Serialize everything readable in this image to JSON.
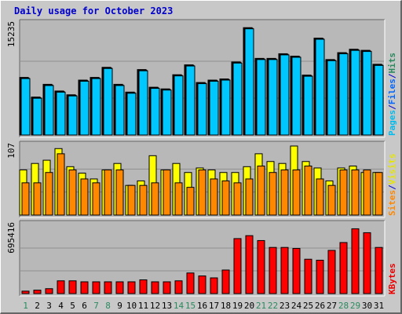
{
  "title": "Daily usage for October 2023",
  "colors": {
    "frame": "#c8c8c8",
    "panel": "#b8b8b8",
    "grid": "#8f8f8f",
    "pages": "#00c8ff",
    "pages_label": "#00bcee",
    "files": "#0066ff",
    "hits": "#2b8a5e",
    "visits": "#ffff00",
    "visits_label": "#e6e600",
    "sites": "#ff8800",
    "sites_label": "#ff8800",
    "kbytes": "#ff0000",
    "kbytes_label": "#ee0000",
    "day_weekday": "#000000",
    "day_weekend": "#2b8a5e",
    "separator": "#0000cc"
  },
  "chart_data": [
    {
      "type": "bar",
      "categories": [
        "1",
        "2",
        "3",
        "4",
        "5",
        "6",
        "7",
        "8",
        "9",
        "10",
        "11",
        "12",
        "13",
        "14",
        "15",
        "16",
        "17",
        "18",
        "19",
        "20",
        "21",
        "22",
        "23",
        "24",
        "25",
        "26",
        "27",
        "28",
        "29",
        "30",
        "31"
      ],
      "weekend_days": [
        "1",
        "7",
        "8",
        "14",
        "15",
        "21",
        "22",
        "28",
        "29"
      ],
      "axis_max_label": "15235",
      "ylim": [
        0,
        15235
      ],
      "legend": [
        "Pages",
        "/",
        "Files",
        "/",
        "Hits"
      ],
      "series": [
        {
          "name": "Hits",
          "values": [
            7930,
            5230,
            6980,
            6060,
            5540,
            7560,
            7930,
            9320,
            6980,
            5910,
            9010,
            6580,
            6350,
            8300,
            9660,
            7230,
            7560,
            7720,
            10060,
            14780,
            10550,
            10550,
            11190,
            10860,
            8250,
            13340,
            10390,
            11340,
            11810,
            11660,
            9740
          ]
        },
        {
          "name": "Files",
          "values": [
            7850,
            5140,
            6890,
            5980,
            5460,
            7480,
            7850,
            9240,
            6890,
            5830,
            8920,
            6500,
            6270,
            8220,
            9580,
            7150,
            7480,
            7640,
            9980,
            14700,
            10470,
            10470,
            11110,
            10780,
            8170,
            13260,
            10310,
            11260,
            11730,
            11580,
            9660
          ]
        },
        {
          "name": "Pages",
          "values": [
            7770,
            5060,
            6810,
            5900,
            5380,
            7400,
            7770,
            9160,
            6810,
            5750,
            8840,
            6420,
            6190,
            8140,
            9500,
            7070,
            7400,
            7560,
            9900,
            14620,
            10390,
            10390,
            11030,
            10700,
            8090,
            13180,
            10230,
            11180,
            11650,
            11500,
            9580
          ]
        }
      ]
    },
    {
      "type": "bar",
      "categories": [
        "1",
        "2",
        "3",
        "4",
        "5",
        "6",
        "7",
        "8",
        "9",
        "10",
        "11",
        "12",
        "13",
        "14",
        "15",
        "16",
        "17",
        "18",
        "19",
        "20",
        "21",
        "22",
        "23",
        "24",
        "25",
        "26",
        "27",
        "28",
        "29",
        "30",
        "31"
      ],
      "axis_max_label": "107",
      "ylim": [
        0,
        107
      ],
      "legend": [
        "Sites",
        "/",
        "Visits"
      ],
      "series": [
        {
          "name": "Visits",
          "values": [
            70,
            80,
            85,
            103,
            75,
            65,
            56,
            70,
            80,
            46,
            53,
            92,
            70,
            80,
            66,
            73,
            70,
            66,
            66,
            75,
            95,
            83,
            80,
            107,
            83,
            73,
            53,
            73,
            76,
            66,
            66
          ]
        },
        {
          "name": "Sites",
          "values": [
            50,
            50,
            66,
            95,
            70,
            56,
            50,
            70,
            70,
            46,
            46,
            50,
            70,
            50,
            43,
            70,
            56,
            53,
            50,
            56,
            76,
            66,
            70,
            70,
            76,
            56,
            46,
            70,
            70,
            70,
            66
          ]
        }
      ]
    },
    {
      "type": "bar",
      "categories": [
        "1",
        "2",
        "3",
        "4",
        "5",
        "6",
        "7",
        "8",
        "9",
        "10",
        "11",
        "12",
        "13",
        "14",
        "15",
        "16",
        "17",
        "18",
        "19",
        "20",
        "21",
        "22",
        "23",
        "24",
        "25",
        "26",
        "27",
        "28",
        "29",
        "30",
        "31"
      ],
      "axis_max_label": "695416",
      "ylim": [
        0,
        695416
      ],
      "legend": [
        "KBytes"
      ],
      "series": [
        {
          "name": "KBytes",
          "values": [
            25000,
            35000,
            50000,
            130000,
            130000,
            120000,
            120000,
            120000,
            120000,
            120000,
            140000,
            120000,
            120000,
            130000,
            210000,
            180000,
            160000,
            240000,
            560000,
            590000,
            540000,
            470000,
            470000,
            460000,
            350000,
            340000,
            440000,
            520000,
            660000,
            620000,
            470000
          ]
        }
      ]
    }
  ]
}
